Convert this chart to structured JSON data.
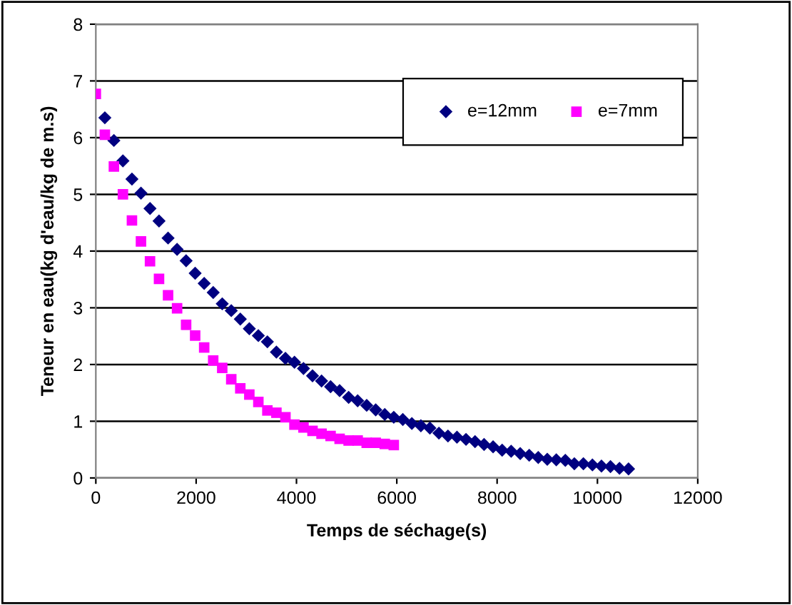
{
  "chart_data": {
    "type": "scatter",
    "xlabel": "Temps de séchage(s)",
    "ylabel": "Teneur en eau(kg d'eau/kg de m.s)",
    "xlim": [
      0,
      12000
    ],
    "xticks": [
      0,
      2000,
      4000,
      6000,
      8000,
      10000,
      12000
    ],
    "ylim": [
      0,
      8
    ],
    "yticks": [
      0,
      1,
      2,
      3,
      4,
      5,
      6,
      7,
      8
    ],
    "grid": "y",
    "legend": "top right",
    "series": [
      {
        "name": "e=12mm",
        "color": "#000080",
        "marker": "diamond",
        "x": [
          180,
          360,
          540,
          720,
          900,
          1080,
          1260,
          1440,
          1620,
          1800,
          1980,
          2160,
          2340,
          2520,
          2700,
          2880,
          3060,
          3240,
          3420,
          3600,
          3780,
          3960,
          4140,
          4320,
          4500,
          4680,
          4860,
          5040,
          5220,
          5400,
          5580,
          5760,
          5940,
          6120,
          6300,
          6480,
          6660,
          6840,
          7020,
          7200,
          7380,
          7560,
          7740,
          7920,
          8100,
          8280,
          8460,
          8640,
          8820,
          9000,
          9180,
          9360,
          9540,
          9720,
          9900,
          10080,
          10260,
          10440,
          10620
        ],
        "values": [
          6.35,
          5.95,
          5.59,
          5.27,
          5.02,
          4.75,
          4.53,
          4.23,
          4.03,
          3.83,
          3.61,
          3.43,
          3.27,
          3.07,
          2.95,
          2.8,
          2.63,
          2.51,
          2.4,
          2.22,
          2.11,
          2.04,
          1.93,
          1.8,
          1.71,
          1.61,
          1.54,
          1.42,
          1.36,
          1.28,
          1.2,
          1.12,
          1.07,
          1.03,
          0.96,
          0.92,
          0.88,
          0.79,
          0.74,
          0.72,
          0.68,
          0.64,
          0.59,
          0.55,
          0.49,
          0.47,
          0.43,
          0.4,
          0.36,
          0.33,
          0.32,
          0.31,
          0.25,
          0.25,
          0.23,
          0.21,
          0.2,
          0.17,
          0.16
        ]
      },
      {
        "name": "e=7mm",
        "color": "#ff00ff",
        "marker": "square",
        "x": [
          0,
          180,
          360,
          540,
          720,
          900,
          1080,
          1260,
          1440,
          1620,
          1800,
          1980,
          2160,
          2340,
          2520,
          2700,
          2880,
          3060,
          3240,
          3420,
          3600,
          3780,
          3960,
          4140,
          4320,
          4500,
          4680,
          4860,
          5040,
          5220,
          5400,
          5580,
          5760,
          5940
        ],
        "values": [
          6.77,
          6.05,
          5.49,
          5.0,
          4.54,
          4.17,
          3.82,
          3.51,
          3.22,
          2.99,
          2.7,
          2.51,
          2.3,
          2.07,
          1.94,
          1.74,
          1.58,
          1.47,
          1.34,
          1.19,
          1.15,
          1.07,
          0.94,
          0.89,
          0.83,
          0.78,
          0.74,
          0.69,
          0.66,
          0.66,
          0.62,
          0.62,
          0.6,
          0.58
        ]
      }
    ]
  }
}
